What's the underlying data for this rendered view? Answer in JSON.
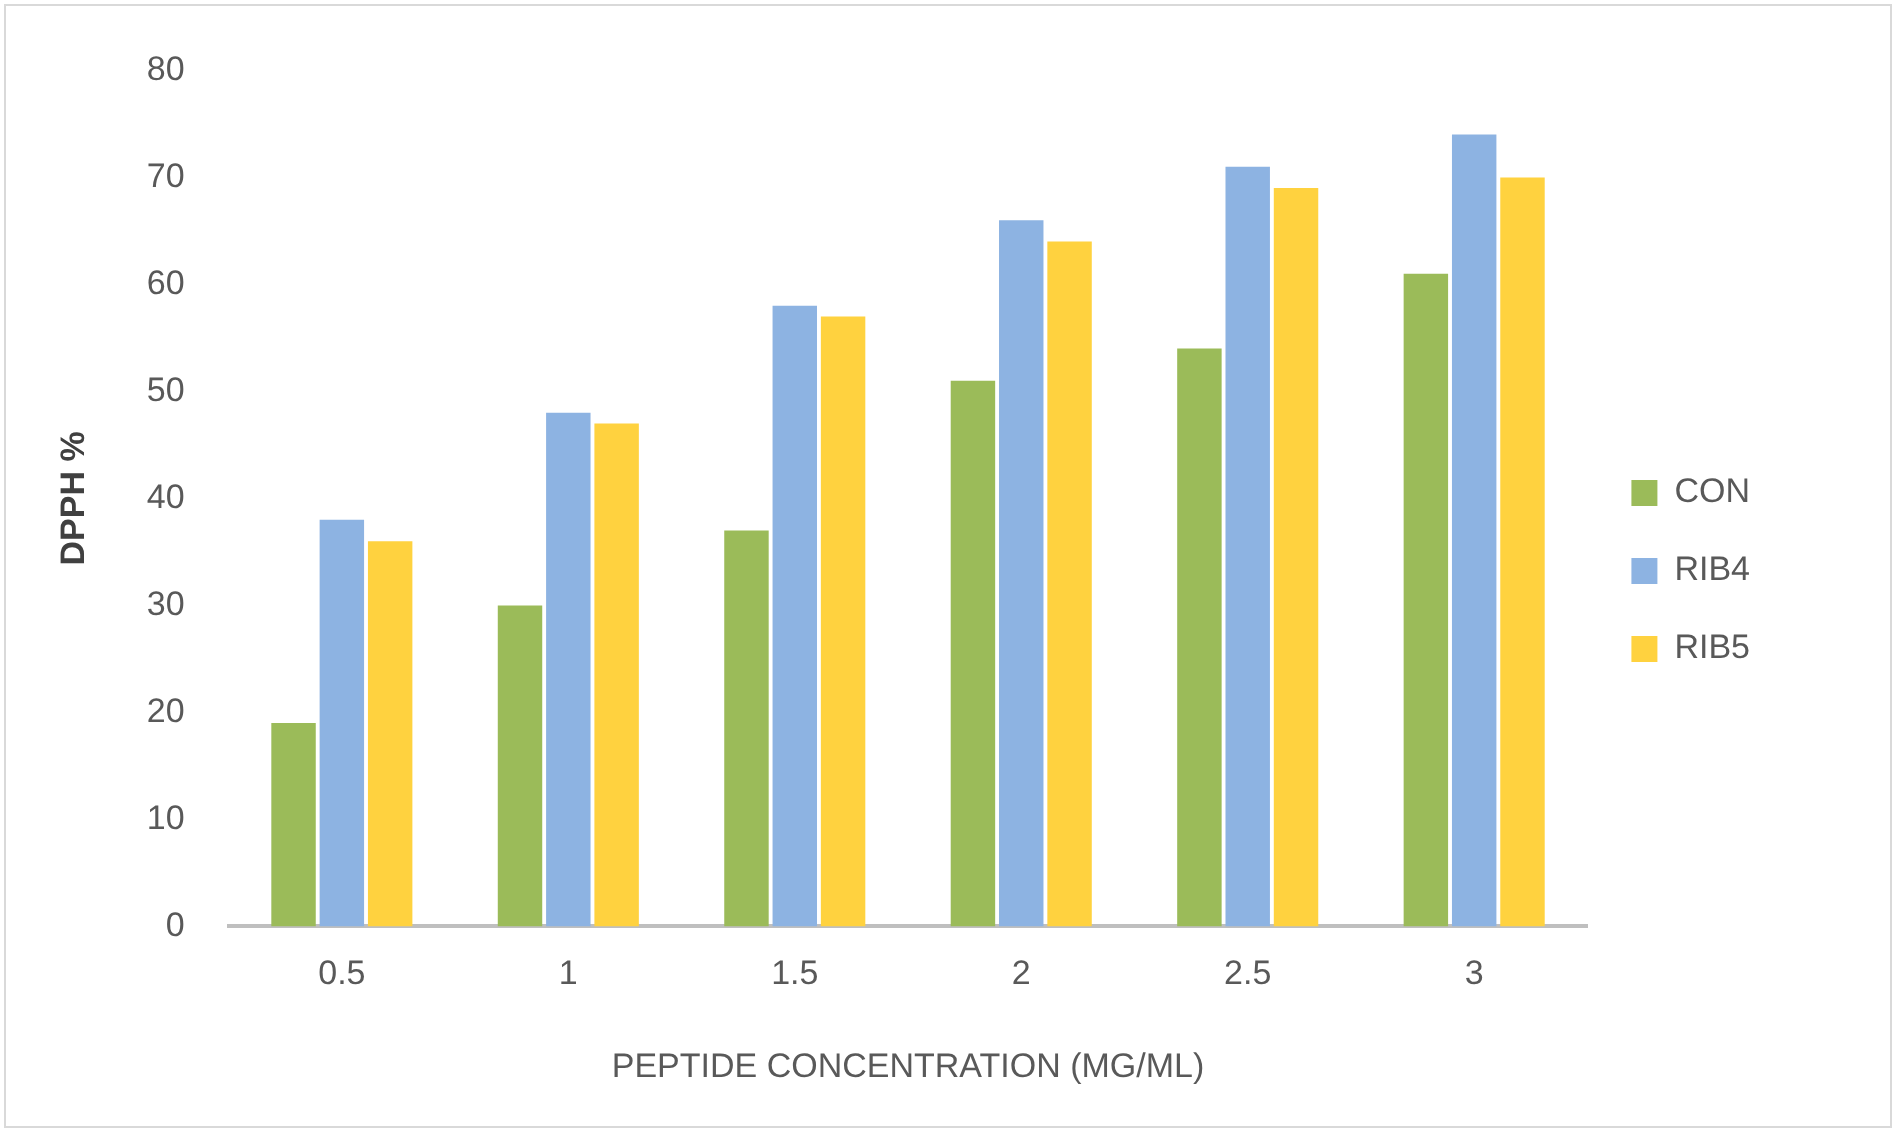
{
  "chart_data": {
    "type": "bar",
    "xlabel": "PEPTIDE CONCENTRATION (MG/ML)",
    "ylabel": "DPPH %",
    "categories": [
      "0.5",
      "1",
      "1.5",
      "2",
      "2.5",
      "3"
    ],
    "series": [
      {
        "name": "CON",
        "color": "#9bbb59",
        "values": [
          19,
          30,
          37,
          51,
          54,
          61
        ]
      },
      {
        "name": "RIB4",
        "color": "#8db3e2",
        "values": [
          38,
          48,
          58,
          66,
          71,
          74
        ]
      },
      {
        "name": "RIB5",
        "color": "#ffd23f",
        "values": [
          36,
          47,
          57,
          64,
          69,
          70
        ]
      }
    ],
    "ylim": [
      0,
      80
    ],
    "yticks": [
      0,
      10,
      20,
      30,
      40,
      50,
      60,
      70,
      80
    ],
    "grid": false,
    "legend": "right"
  }
}
